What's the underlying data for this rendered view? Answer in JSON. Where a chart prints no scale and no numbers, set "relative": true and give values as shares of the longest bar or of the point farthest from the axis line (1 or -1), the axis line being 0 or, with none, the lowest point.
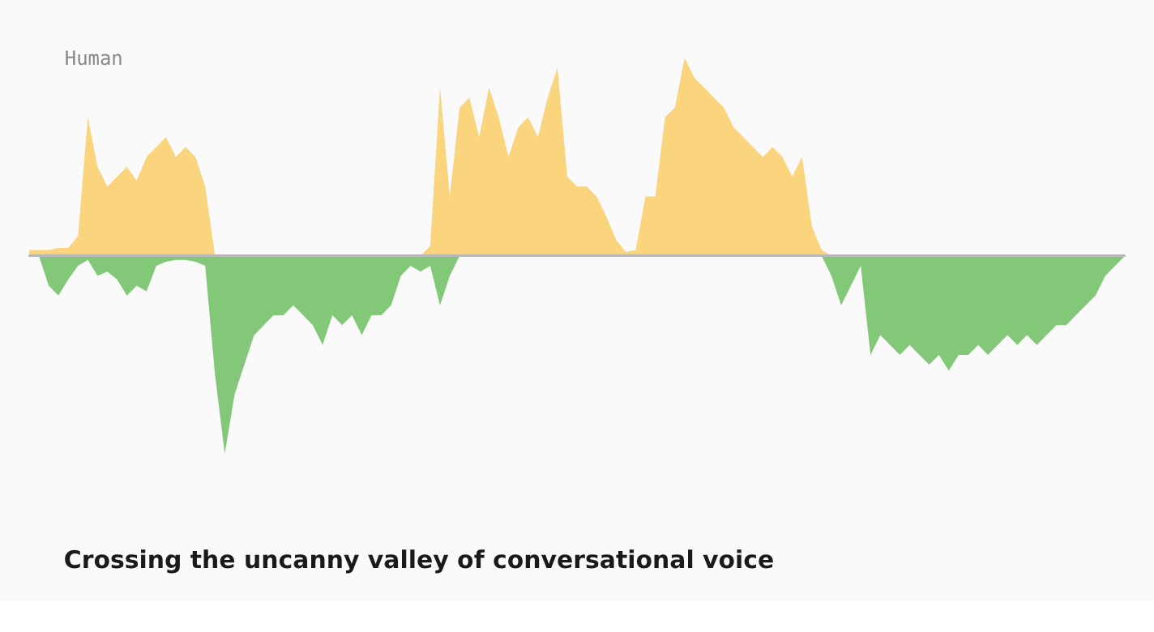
{
  "chart_data": {
    "type": "area",
    "relative": true,
    "title": "Crossing the uncanny valley of conversational voice",
    "categories": [
      null,
      null,
      null,
      null,
      null,
      null,
      null,
      null,
      null,
      null,
      null,
      null,
      null,
      null,
      null,
      null,
      null,
      null,
      null,
      null,
      null,
      null,
      null,
      null,
      null,
      null,
      null,
      null,
      null,
      null,
      null,
      null,
      null,
      null,
      null,
      null,
      null,
      null,
      null,
      null,
      null,
      null,
      null,
      null,
      null,
      null,
      null,
      null,
      null,
      null,
      null,
      null,
      null,
      null,
      null,
      null,
      null,
      null,
      null,
      null,
      null,
      null,
      null,
      null,
      null,
      null,
      null,
      null,
      null,
      null,
      null,
      null,
      null,
      null,
      null,
      null,
      null,
      null,
      null,
      null,
      null,
      null,
      null,
      null,
      null,
      null,
      null,
      null,
      null,
      null,
      null,
      null,
      null,
      null,
      null,
      null,
      null,
      null,
      null,
      null,
      null,
      null,
      null,
      null,
      null,
      null,
      null,
      null,
      null,
      null,
      null,
      null,
      null
    ],
    "series": [
      {
        "name": "Human",
        "color": "#fbd47e",
        "values": [
          0.03,
          0.03,
          0.03,
          0.04,
          0.04,
          0.1,
          0.7,
          0.45,
          0.35,
          0.4,
          0.45,
          0.38,
          0.5,
          0.55,
          0.6,
          0.5,
          0.55,
          0.5,
          0.35,
          0,
          0,
          0,
          0,
          0,
          0,
          0,
          0,
          0,
          0,
          0,
          0,
          0,
          0,
          0,
          0,
          0,
          0,
          0,
          0,
          0,
          0,
          0.05,
          0.85,
          0.3,
          0.75,
          0.8,
          0.6,
          0.85,
          0.7,
          0.5,
          0.65,
          0.7,
          0.6,
          0.8,
          0.95,
          0.4,
          0.35,
          0.35,
          0.3,
          0.2,
          0.08,
          0.02,
          0.03,
          0.3,
          0.3,
          0.7,
          0.75,
          1.0,
          0.9,
          0.85,
          0.8,
          0.75,
          0.65,
          0.6,
          0.55,
          0.5,
          0.55,
          0.5,
          0.4,
          0.5,
          0.15,
          0.03,
          0,
          0,
          0,
          0,
          0,
          0,
          0,
          0,
          0,
          0,
          0,
          0,
          0,
          0,
          0,
          0,
          0,
          0,
          0,
          0,
          0,
          0,
          0,
          0,
          0,
          0,
          0,
          0,
          0,
          0,
          0
        ]
      },
      {
        "color": "#82c878",
        "values": [
          0,
          0,
          -0.15,
          -0.2,
          -0.12,
          -0.05,
          -0.02,
          -0.1,
          -0.08,
          -0.12,
          -0.2,
          -0.15,
          -0.18,
          -0.05,
          -0.03,
          -0.02,
          -0.02,
          -0.03,
          -0.05,
          -0.6,
          -1.0,
          -0.7,
          -0.55,
          -0.4,
          -0.35,
          -0.3,
          -0.3,
          -0.25,
          -0.3,
          -0.35,
          -0.45,
          -0.3,
          -0.35,
          -0.3,
          -0.4,
          -0.3,
          -0.3,
          -0.25,
          -0.1,
          -0.05,
          -0.08,
          -0.05,
          -0.25,
          -0.1,
          0,
          0,
          0,
          0,
          0,
          0,
          0,
          0,
          0,
          0,
          0,
          0,
          0,
          0,
          0,
          0,
          0,
          0,
          0,
          0,
          0,
          0,
          0,
          0,
          0,
          0,
          0,
          0,
          0,
          0,
          0,
          0,
          0,
          0,
          0,
          0,
          0,
          0,
          -0.1,
          -0.25,
          -0.15,
          -0.05,
          -0.5,
          -0.4,
          -0.45,
          -0.5,
          -0.45,
          -0.5,
          -0.55,
          -0.5,
          -0.58,
          -0.5,
          -0.5,
          -0.45,
          -0.5,
          -0.45,
          -0.4,
          -0.45,
          -0.4,
          -0.45,
          -0.4,
          -0.35,
          -0.35,
          -0.3,
          -0.25,
          -0.2,
          -0.1,
          -0.05,
          0
        ]
      }
    ],
    "legend": false
  }
}
